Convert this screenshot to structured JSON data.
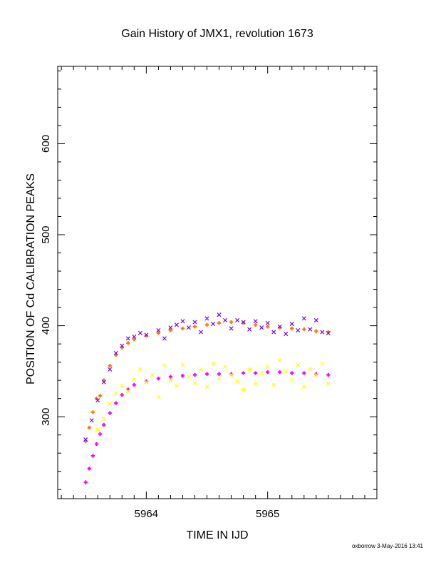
{
  "chart_data": {
    "type": "scatter",
    "title": "Gain History of JMX1, revolution 1673",
    "xlabel": "TIME IN IJD",
    "ylabel": "POSITION OF Cd CALIBRATION PEAKS",
    "xlim": [
      5963.27,
      5965.9
    ],
    "ylim": [
      210,
      685
    ],
    "x_ticks": [
      5964,
      5965
    ],
    "y_ticks": [
      300,
      400,
      500,
      600
    ],
    "grid": false,
    "footer": "oxborrow  3-May-2016 13:41",
    "series": [
      {
        "color": "#ff7700",
        "marker": "+",
        "points": [
          [
            5963.5,
            273
          ],
          [
            5963.53,
            288
          ],
          [
            5963.56,
            305
          ],
          [
            5963.59,
            320
          ],
          [
            5963.62,
            323
          ],
          [
            5963.65,
            340
          ],
          [
            5963.7,
            356
          ],
          [
            5963.75,
            368
          ],
          [
            5963.8,
            376
          ],
          [
            5963.85,
            381
          ],
          [
            5963.9,
            385
          ],
          [
            5964.0,
            389
          ],
          [
            5964.1,
            392
          ],
          [
            5964.2,
            395
          ],
          [
            5964.3,
            397
          ],
          [
            5964.4,
            399
          ],
          [
            5964.5,
            401
          ],
          [
            5964.6,
            403
          ],
          [
            5964.7,
            404
          ],
          [
            5964.8,
            403
          ],
          [
            5964.9,
            401
          ],
          [
            5965.0,
            399
          ],
          [
            5965.1,
            398
          ],
          [
            5965.2,
            397
          ],
          [
            5965.3,
            396
          ],
          [
            5965.4,
            394
          ],
          [
            5965.5,
            393
          ]
        ]
      },
      {
        "color": "#7700ff",
        "marker": "x",
        "points": [
          [
            5963.5,
            275
          ],
          [
            5963.55,
            296
          ],
          [
            5963.6,
            318
          ],
          [
            5963.65,
            338
          ],
          [
            5963.7,
            352
          ],
          [
            5963.75,
            370
          ],
          [
            5963.8,
            378
          ],
          [
            5963.85,
            386
          ],
          [
            5963.9,
            388
          ],
          [
            5963.95,
            392
          ],
          [
            5964.0,
            390
          ],
          [
            5964.1,
            395
          ],
          [
            5964.15,
            386
          ],
          [
            5964.2,
            398
          ],
          [
            5964.25,
            401
          ],
          [
            5964.3,
            405
          ],
          [
            5964.35,
            398
          ],
          [
            5964.4,
            404
          ],
          [
            5964.45,
            393
          ],
          [
            5964.5,
            408
          ],
          [
            5964.55,
            402
          ],
          [
            5964.6,
            412
          ],
          [
            5964.65,
            406
          ],
          [
            5964.7,
            397
          ],
          [
            5964.75,
            406
          ],
          [
            5964.8,
            404
          ],
          [
            5964.85,
            396
          ],
          [
            5964.9,
            405
          ],
          [
            5964.95,
            398
          ],
          [
            5965.0,
            403
          ],
          [
            5965.05,
            393
          ],
          [
            5965.1,
            399
          ],
          [
            5965.15,
            391
          ],
          [
            5965.2,
            402
          ],
          [
            5965.25,
            395
          ],
          [
            5965.3,
            408
          ],
          [
            5965.35,
            396
          ],
          [
            5965.4,
            406
          ],
          [
            5965.45,
            393
          ],
          [
            5965.5,
            392
          ]
        ]
      },
      {
        "color": "#ff00ff",
        "marker": "+",
        "points": [
          [
            5963.5,
            228
          ],
          [
            5963.53,
            243
          ],
          [
            5963.56,
            257
          ],
          [
            5963.59,
            270
          ],
          [
            5963.62,
            281
          ],
          [
            5963.65,
            291
          ],
          [
            5963.7,
            304
          ],
          [
            5963.75,
            315
          ],
          [
            5963.8,
            324
          ],
          [
            5963.85,
            330
          ],
          [
            5963.9,
            335
          ],
          [
            5964.0,
            339
          ],
          [
            5964.1,
            342
          ],
          [
            5964.2,
            344
          ],
          [
            5964.3,
            345
          ],
          [
            5964.4,
            346
          ],
          [
            5964.5,
            347
          ],
          [
            5964.6,
            347
          ],
          [
            5964.7,
            347
          ],
          [
            5964.8,
            348
          ],
          [
            5964.9,
            348
          ],
          [
            5965.0,
            349
          ],
          [
            5965.1,
            349
          ],
          [
            5965.2,
            348
          ],
          [
            5965.3,
            348
          ],
          [
            5965.4,
            347
          ],
          [
            5965.5,
            346
          ]
        ]
      },
      {
        "color": "#ffff00",
        "marker": "x",
        "points": [
          [
            5963.6,
            286
          ],
          [
            5963.65,
            298
          ],
          [
            5963.7,
            314
          ],
          [
            5963.75,
            326
          ],
          [
            5963.8,
            334
          ],
          [
            5963.85,
            328
          ],
          [
            5963.9,
            341
          ],
          [
            5963.95,
            352
          ],
          [
            5964.0,
            338
          ],
          [
            5964.05,
            346
          ],
          [
            5964.1,
            322
          ],
          [
            5964.15,
            356
          ],
          [
            5964.2,
            340
          ],
          [
            5964.25,
            334
          ],
          [
            5964.3,
            357
          ],
          [
            5964.35,
            344
          ],
          [
            5964.4,
            337
          ],
          [
            5964.45,
            352
          ],
          [
            5964.5,
            333
          ],
          [
            5964.55,
            358
          ],
          [
            5964.6,
            342
          ],
          [
            5964.65,
            355
          ],
          [
            5964.7,
            346
          ],
          [
            5964.75,
            339
          ],
          [
            5964.8,
            330
          ],
          [
            5964.85,
            352
          ],
          [
            5964.9,
            336
          ],
          [
            5964.95,
            348
          ],
          [
            5965.0,
            355
          ],
          [
            5965.05,
            335
          ],
          [
            5965.1,
            362
          ],
          [
            5965.15,
            350
          ],
          [
            5965.2,
            340
          ],
          [
            5965.25,
            357
          ],
          [
            5965.3,
            333
          ],
          [
            5965.35,
            352
          ],
          [
            5965.4,
            346
          ],
          [
            5965.45,
            358
          ],
          [
            5965.5,
            336
          ]
        ]
      }
    ]
  }
}
